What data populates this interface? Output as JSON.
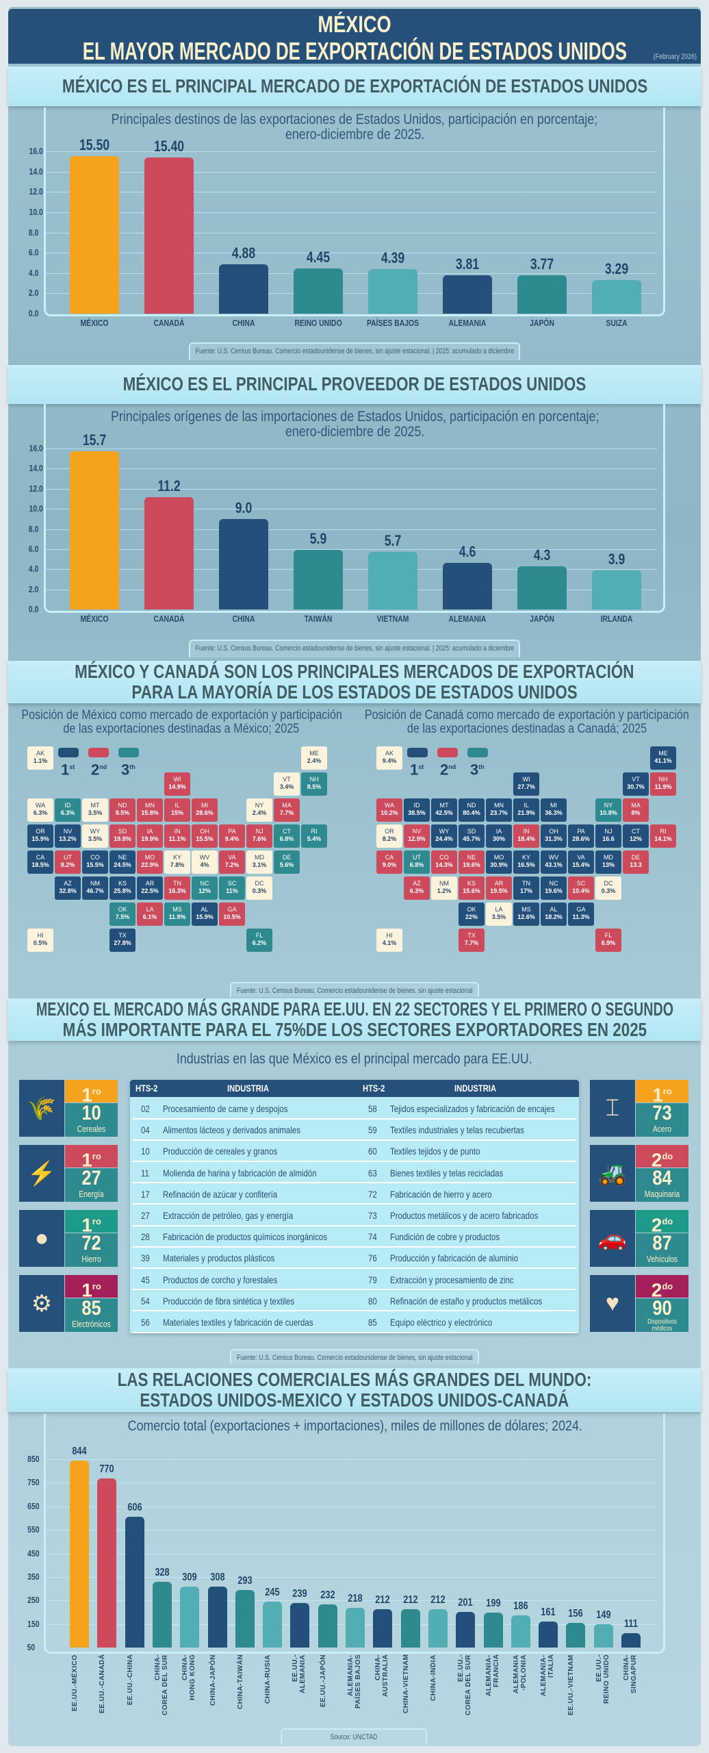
{
  "header": {
    "line1": "MÉXICO",
    "line2": "EL MAYOR MERCADO DE EXPORTACIÓN DE ESTADOS UNIDOS",
    "date": "(February 2026)"
  },
  "colors": {
    "orange": "#f5a21e",
    "red": "#cc4a5c",
    "navy": "#22507a",
    "teal": "#2e8a8f",
    "lightteal": "#52aeb4",
    "green": "#1e9a88",
    "magenta": "#a3205a",
    "cream": "#fdf3dc"
  },
  "section1": {
    "title": "MÉXICO ES EL PRINCIPAL MERCADO DE EXPORTACIÓN DE ESTADOS UNIDOS",
    "source": "Fuente: U.S. Census Bureau. Comercio estadounidense de bienes, sin ajuste estacional. | 2025: acumulado a diciembre"
  },
  "section2": {
    "title": "MÉXICO ES EL PRINCIPAL PROVEEDOR DE ESTADOS UNIDOS",
    "source": "Fuente: U.S. Census Bureau. Comercio estadounidense de bienes, sin ajuste estacional. | 2025: acumulado a diciembre"
  },
  "section3": {
    "title1": "MÉXICO Y CANADÁ SON LOS PRINCIPALES MERCADOS DE EXPORTACIÓN",
    "title2": "PARA LA MAYORÍA DE LOS ESTADOS DE ESTADOS UNIDOS",
    "source": "Fuente: U.S. Census Bureau. Comercio estadounidense de bienes, sin ajuste estacional",
    "legend": [
      {
        "num": "1",
        "sup": "st",
        "color": "#22507a"
      },
      {
        "num": "2",
        "sup": "nd",
        "color": "#cc4a5c"
      },
      {
        "num": "3",
        "sup": "th",
        "color": "#2e8a8f"
      }
    ],
    "maps": [
      {
        "title1": "Posición de México como mercado de exportación y participación",
        "title2": "de las exportaciones destinadas a México; 2025",
        "states": [
          {
            "s": "AK",
            "v": "1.1%",
            "r": 0
          },
          {
            "s": "ME",
            "v": "2.4%",
            "r": 0
          },
          {
            "s": "WI",
            "v": "14.9%",
            "r": 2
          },
          {
            "s": "VT",
            "v": "3.4%",
            "r": 0
          },
          {
            "s": "NH",
            "v": "8.5%",
            "r": 3
          },
          {
            "s": "WA",
            "v": "6.3%",
            "r": 0
          },
          {
            "s": "ID",
            "v": "6.3%",
            "r": 3
          },
          {
            "s": "MT",
            "v": "3.5%",
            "r": 0
          },
          {
            "s": "ND",
            "v": "9.5%",
            "r": 2
          },
          {
            "s": "MN",
            "v": "15.8%",
            "r": 2
          },
          {
            "s": "IL",
            "v": "15%",
            "r": 2
          },
          {
            "s": "MI",
            "v": "28.6%",
            "r": 2
          },
          {
            "s": "NY",
            "v": "2.4%",
            "r": 0
          },
          {
            "s": "MA",
            "v": "7.7%",
            "r": 2
          },
          {
            "s": "OR",
            "v": "15.9%",
            "r": 1
          },
          {
            "s": "NV",
            "v": "13.2%",
            "r": 1
          },
          {
            "s": "WY",
            "v": "3.5%",
            "r": 0
          },
          {
            "s": "SD",
            "v": "19.8%",
            "r": 2
          },
          {
            "s": "IA",
            "v": "19.9%",
            "r": 2
          },
          {
            "s": "IN",
            "v": "11.1%",
            "r": 2
          },
          {
            "s": "OH",
            "v": "15.5%",
            "r": 2
          },
          {
            "s": "PA",
            "v": "9.4%",
            "r": 2
          },
          {
            "s": "NJ",
            "v": "7.6%",
            "r": 2
          },
          {
            "s": "CT",
            "v": "6.8%",
            "r": 3
          },
          {
            "s": "RI",
            "v": "5.4%",
            "r": 3
          },
          {
            "s": "CA",
            "v": "18.5%",
            "r": 1
          },
          {
            "s": "UT",
            "v": "8.2%",
            "r": 2
          },
          {
            "s": "CO",
            "v": "15.5%",
            "r": 1
          },
          {
            "s": "NE",
            "v": "24.5%",
            "r": 1
          },
          {
            "s": "MO",
            "v": "22.9%",
            "r": 2
          },
          {
            "s": "KY",
            "v": "7.8%",
            "r": 0
          },
          {
            "s": "WV",
            "v": "4%",
            "r": 0
          },
          {
            "s": "VA",
            "v": "7.2%",
            "r": 2
          },
          {
            "s": "MD",
            "v": "3.1%",
            "r": 0
          },
          {
            "s": "DE",
            "v": "5.6%",
            "r": 3
          },
          {
            "s": "AZ",
            "v": "32.8%",
            "r": 1
          },
          {
            "s": "NM",
            "v": "46.7%",
            "r": 1
          },
          {
            "s": "KS",
            "v": "25.8%",
            "r": 1
          },
          {
            "s": "AR",
            "v": "22.5%",
            "r": 1
          },
          {
            "s": "TN",
            "v": "16.3%",
            "r": 2
          },
          {
            "s": "NC",
            "v": "12%",
            "r": 3
          },
          {
            "s": "SC",
            "v": "11%",
            "r": 3
          },
          {
            "s": "DC",
            "v": "0.3%",
            "r": 0
          },
          {
            "s": "OK",
            "v": "7.5%",
            "r": 3
          },
          {
            "s": "LA",
            "v": "6.1%",
            "r": 2
          },
          {
            "s": "MS",
            "v": "11.9%",
            "r": 3
          },
          {
            "s": "AL",
            "v": "15.9%",
            "r": 1
          },
          {
            "s": "GA",
            "v": "10.5%",
            "r": 2
          },
          {
            "s": "HI",
            "v": "0.5%",
            "r": 0
          },
          {
            "s": "TX",
            "v": "27.8%",
            "r": 1
          },
          {
            "s": "FL",
            "v": "6.2%",
            "r": 3
          }
        ]
      },
      {
        "title1": "Posición de Canadá como mercado de exportación y participación",
        "title2": "de las exportaciones destinadas a Canadá; 2025",
        "states": [
          {
            "s": "AK",
            "v": "9.4%",
            "r": 0
          },
          {
            "s": "ME",
            "v": "41.1%",
            "r": 1
          },
          {
            "s": "WI",
            "v": "27.7%",
            "r": 1
          },
          {
            "s": "VT",
            "v": "30.7%",
            "r": 1
          },
          {
            "s": "NH",
            "v": "11.9%",
            "r": 2
          },
          {
            "s": "WA",
            "v": "10.2%",
            "r": 2
          },
          {
            "s": "ID",
            "v": "38.5%",
            "r": 1
          },
          {
            "s": "MT",
            "v": "42.5%",
            "r": 1
          },
          {
            "s": "ND",
            "v": "80.4%",
            "r": 1
          },
          {
            "s": "MN",
            "v": "23.7%",
            "r": 1
          },
          {
            "s": "IL",
            "v": "21.9%",
            "r": 1
          },
          {
            "s": "MI",
            "v": "36.3%",
            "r": 1
          },
          {
            "s": "NY",
            "v": "10.8%",
            "r": 3
          },
          {
            "s": "MA",
            "v": "8%",
            "r": 2
          },
          {
            "s": "OR",
            "v": "8.2%",
            "r": 0
          },
          {
            "s": "NV",
            "v": "12.9%",
            "r": 2
          },
          {
            "s": "WY",
            "v": "24.4%",
            "r": 1
          },
          {
            "s": "SD",
            "v": "45.7%",
            "r": 1
          },
          {
            "s": "IA",
            "v": "30%",
            "r": 1
          },
          {
            "s": "IN",
            "v": "18.4%",
            "r": 2
          },
          {
            "s": "OH",
            "v": "31.3%",
            "r": 1
          },
          {
            "s": "PA",
            "v": "28.6%",
            "r": 1
          },
          {
            "s": "NJ",
            "v": "16.6",
            "r": 1
          },
          {
            "s": "CT",
            "v": "12%",
            "r": 1
          },
          {
            "s": "RI",
            "v": "14.1%",
            "r": 2
          },
          {
            "s": "CA",
            "v": "9.0%",
            "r": 2
          },
          {
            "s": "UT",
            "v": "6.8%",
            "r": 3
          },
          {
            "s": "CO",
            "v": "14.3%",
            "r": 2
          },
          {
            "s": "NE",
            "v": "19.6%",
            "r": 2
          },
          {
            "s": "MO",
            "v": "30.9%",
            "r": 1
          },
          {
            "s": "KY",
            "v": "16.5%",
            "r": 1
          },
          {
            "s": "WV",
            "v": "43.1%",
            "r": 1
          },
          {
            "s": "VA",
            "v": "15.4%",
            "r": 1
          },
          {
            "s": "MD",
            "v": "13%",
            "r": 1
          },
          {
            "s": "DE",
            "v": "13.3",
            "r": 2
          },
          {
            "s": "AZ",
            "v": "6.3%",
            "r": 2
          },
          {
            "s": "NM",
            "v": "1.2%",
            "r": 0
          },
          {
            "s": "KS",
            "v": "15.6%",
            "r": 2
          },
          {
            "s": "AR",
            "v": "19.5%",
            "r": 2
          },
          {
            "s": "TN",
            "v": "17%",
            "r": 1
          },
          {
            "s": "NC",
            "v": "19.6%",
            "r": 1
          },
          {
            "s": "SC",
            "v": "10.4%",
            "r": 2
          },
          {
            "s": "DC",
            "v": "0.3%",
            "r": 0
          },
          {
            "s": "OK",
            "v": "22%",
            "r": 1
          },
          {
            "s": "LA",
            "v": "3.5%",
            "r": 0
          },
          {
            "s": "MS",
            "v": "12.6%",
            "r": 1
          },
          {
            "s": "AL",
            "v": "18.2%",
            "r": 1
          },
          {
            "s": "GA",
            "v": "11.3%",
            "r": 1
          },
          {
            "s": "HI",
            "v": "4.1%",
            "r": 0
          },
          {
            "s": "TX",
            "v": "7.7%",
            "r": 2
          },
          {
            "s": "FL",
            "v": "6.9%",
            "r": 2
          }
        ]
      }
    ]
  },
  "section4": {
    "title1": "MEXICO EL MERCADO MÁS GRANDE PARA EE.UU. EN 22 SECTORES Y EL PRIMERO O SEGUNDO",
    "title2": "MÁS IMPORTANTE PARA EL 75%DE LOS SECTORES EXPORTADORES EN 2025",
    "subtitle": "Industrias en las que México es el principal mercado para EE.UU.",
    "source": "Fuente: U.S. Census Bureau. Comercio estadounidense de bienes, sin ajuste estacional",
    "badges_left": [
      {
        "icon": "wheat-icon",
        "glyph": "🌾",
        "rank": "1",
        "sup": "ro",
        "rank_color": "#f5a21e",
        "number": "10",
        "label": "Cereales"
      },
      {
        "icon": "energy-cycle-icon",
        "glyph": "⚡",
        "rank": "1",
        "sup": "ro",
        "rank_color": "#cc4a5c",
        "number": "27",
        "label": "Energía"
      },
      {
        "icon": "iron-ore-icon",
        "glyph": "●",
        "rank": "1",
        "sup": "ro",
        "rank_color": "#1e9a88",
        "number": "72",
        "label": "Hierro"
      },
      {
        "icon": "chip-icon",
        "glyph": "⚙",
        "rank": "1",
        "sup": "ro",
        "rank_color": "#a3205a",
        "number": "85",
        "label": "Electrónicos"
      }
    ],
    "badges_right": [
      {
        "icon": "steel-beam-icon",
        "glyph": "⌶",
        "rank": "1",
        "sup": "ro",
        "rank_color": "#f5a21e",
        "number": "73",
        "label": "Acero"
      },
      {
        "icon": "excavator-icon",
        "glyph": "🚜",
        "rank": "2",
        "sup": "do",
        "rank_color": "#cc4a5c",
        "number": "84",
        "label": "Maquinaria"
      },
      {
        "icon": "car-icon",
        "glyph": "🚗",
        "rank": "2",
        "sup": "do",
        "rank_color": "#1e9a88",
        "number": "87",
        "label": "Vehículos"
      },
      {
        "icon": "medical-monitor-icon",
        "glyph": "♥",
        "rank": "2",
        "sup": "do",
        "rank_color": "#a3205a",
        "number": "90",
        "label": "Dispositivos médicos"
      }
    ],
    "table": {
      "headers": [
        "HTS-2",
        "INDUSTRIA",
        "HTS-2",
        "INDUSTRIA"
      ],
      "rows": [
        [
          "02",
          "Procesamiento de carne y despojos",
          "58",
          "Tejidos especializados y fabricación de encajes"
        ],
        [
          "04",
          "Alimentos lácteos y derivados animales",
          "59",
          "Textiles industriales y telas recubiertas"
        ],
        [
          "10",
          "Producción de cereales y granos",
          "60",
          "Textiles tejidos y de punto"
        ],
        [
          "11",
          "Molienda de harina y fabricación de almidón",
          "63",
          "Bienes textiles y telas recicladas"
        ],
        [
          "17",
          "Refinación de azúcar y confitería",
          "72",
          "Fabricación de hierro y acero"
        ],
        [
          "27",
          "Extracción de petróleo, gas y energía",
          "73",
          "Productos metálicos y de acero fabricados"
        ],
        [
          "28",
          "Fabricación de productos químicos inorgánicos",
          "74",
          "Fundición de cobre y productos"
        ],
        [
          "39",
          "Materiales y productos plásticos",
          "76",
          "Producción y fabricación de aluminio"
        ],
        [
          "45",
          "Productos de corcho y forestales",
          "79",
          "Extracción y procesamiento de zinc"
        ],
        [
          "54",
          "Producción de fibra sintética y textiles",
          "80",
          "Refinación de estaño y productos metálicos"
        ],
        [
          "56",
          "Materiales textiles y fabricación de cuerdas",
          "85",
          "Equipo eléctrico y electrónico"
        ]
      ]
    }
  },
  "section5": {
    "title1": "LAS RELACIONES COMERCIALES MÁS GRANDES DEL MUNDO:",
    "title2": "ESTADOS UNIDOS-MEXICO Y ESTADOS UNIDOS-CANADÁ",
    "source": "Source: UNCTAD"
  },
  "chart_data": [
    {
      "type": "bar",
      "title": "Principales destinos de las exportaciones de Estados Unidos, participación en porcentaje;",
      "subtitle": "enero-diciembre de 2025.",
      "categories": [
        "MÉXICO",
        "CANADÁ",
        "CHINA",
        "REINO UNIDO",
        "PAÍSES BAJOS",
        "ALEMANIA",
        "JAPÓN",
        "SUIZA"
      ],
      "values": [
        15.5,
        15.4,
        4.88,
        4.45,
        4.39,
        3.81,
        3.77,
        3.29
      ],
      "value_labels": [
        "15.50",
        "15.40",
        "4.88",
        "4.45",
        "4.39",
        "3.81",
        "3.77",
        "3.29"
      ],
      "colors": [
        "#f5a21e",
        "#cc4a5c",
        "#22507a",
        "#2e8a8f",
        "#52aeb4",
        "#22507a",
        "#2e8a8f",
        "#52aeb4"
      ],
      "ylim": [
        0,
        16
      ],
      "yticks": [
        "0.0",
        "2.0",
        "4.0",
        "6.0",
        "8.0",
        "10.0",
        "12.0",
        "14.0",
        "16.0"
      ],
      "grid": true
    },
    {
      "type": "bar",
      "title": "Principales orígenes de las importaciones de Estados Unidos, participación en porcentaje;",
      "subtitle": "enero-diciembre de 2025.",
      "categories": [
        "MÉXICO",
        "CANADÁ",
        "CHINA",
        "TAIWÁN",
        "VIETNAM",
        "ALEMANIA",
        "JAPÓN",
        "IRLANDA"
      ],
      "values": [
        15.7,
        11.2,
        9.0,
        5.9,
        5.7,
        4.6,
        4.3,
        3.9
      ],
      "value_labels": [
        "15.7",
        "11.2",
        "9.0",
        "5.9",
        "5.7",
        "4.6",
        "4.3",
        "3.9"
      ],
      "colors": [
        "#f5a21e",
        "#cc4a5c",
        "#22507a",
        "#2e8a8f",
        "#52aeb4",
        "#22507a",
        "#2e8a8f",
        "#52aeb4"
      ],
      "ylim": [
        0,
        16
      ],
      "yticks": [
        "0.0",
        "2.0",
        "4.0",
        "6.0",
        "8.0",
        "10.0",
        "12.0",
        "14.0",
        "16.0"
      ],
      "grid": true
    },
    {
      "type": "bar",
      "title": "Comercio total (exportaciones + importaciones), miles de millones de dólares; 2024.",
      "categories": [
        "EE.UU.-MÉXICO",
        "EE.UU.-CANADÁ",
        "EE.UU.-CHINA",
        "CHINA-\nCOREA DEL SUR",
        "CHINA-\nHONG KONG",
        "CHINA-JAPÓN",
        "CHINA-TAIWÁN",
        "CHINA-RUSIA",
        "EE.UU.-\nALEMANIA",
        "EE.UU.-JAPÓN",
        "ALEMANIA-\nPAÍSES BAJOS",
        "CHINA-\nAUSTRALIA",
        "CHINA-VIETNAM",
        "CHINA-INDIA",
        "EE.UU.-\nCOREA DEL SUR",
        "ALEMANIA-\nFRANCIA",
        "ALEMANIA\n-POLONIA",
        "ALEMANIA-\nITALIA",
        "EE.UU.-VIETNAM",
        "EE.UU.-\nREINO UNIDO",
        "CHINA-\nSINGAPUR"
      ],
      "values": [
        844,
        770,
        606,
        328,
        309,
        308,
        293,
        245,
        239,
        232,
        218,
        212,
        212,
        212,
        201,
        199,
        186,
        161,
        156,
        149,
        111
      ],
      "colors": [
        "#f5a21e",
        "#cc4a5c",
        "#22507a",
        "#2e8a8f",
        "#52aeb4",
        "#22507a",
        "#2e8a8f",
        "#52aeb4",
        "#22507a",
        "#2e8a8f",
        "#52aeb4",
        "#22507a",
        "#2e8a8f",
        "#52aeb4",
        "#22507a",
        "#2e8a8f",
        "#52aeb4",
        "#22507a",
        "#2e8a8f",
        "#52aeb4",
        "#22507a"
      ],
      "ylim": [
        50,
        850
      ],
      "yticks": [
        "50",
        "150",
        "250",
        "350",
        "450",
        "550",
        "650",
        "750",
        "850"
      ],
      "grid": true
    }
  ]
}
